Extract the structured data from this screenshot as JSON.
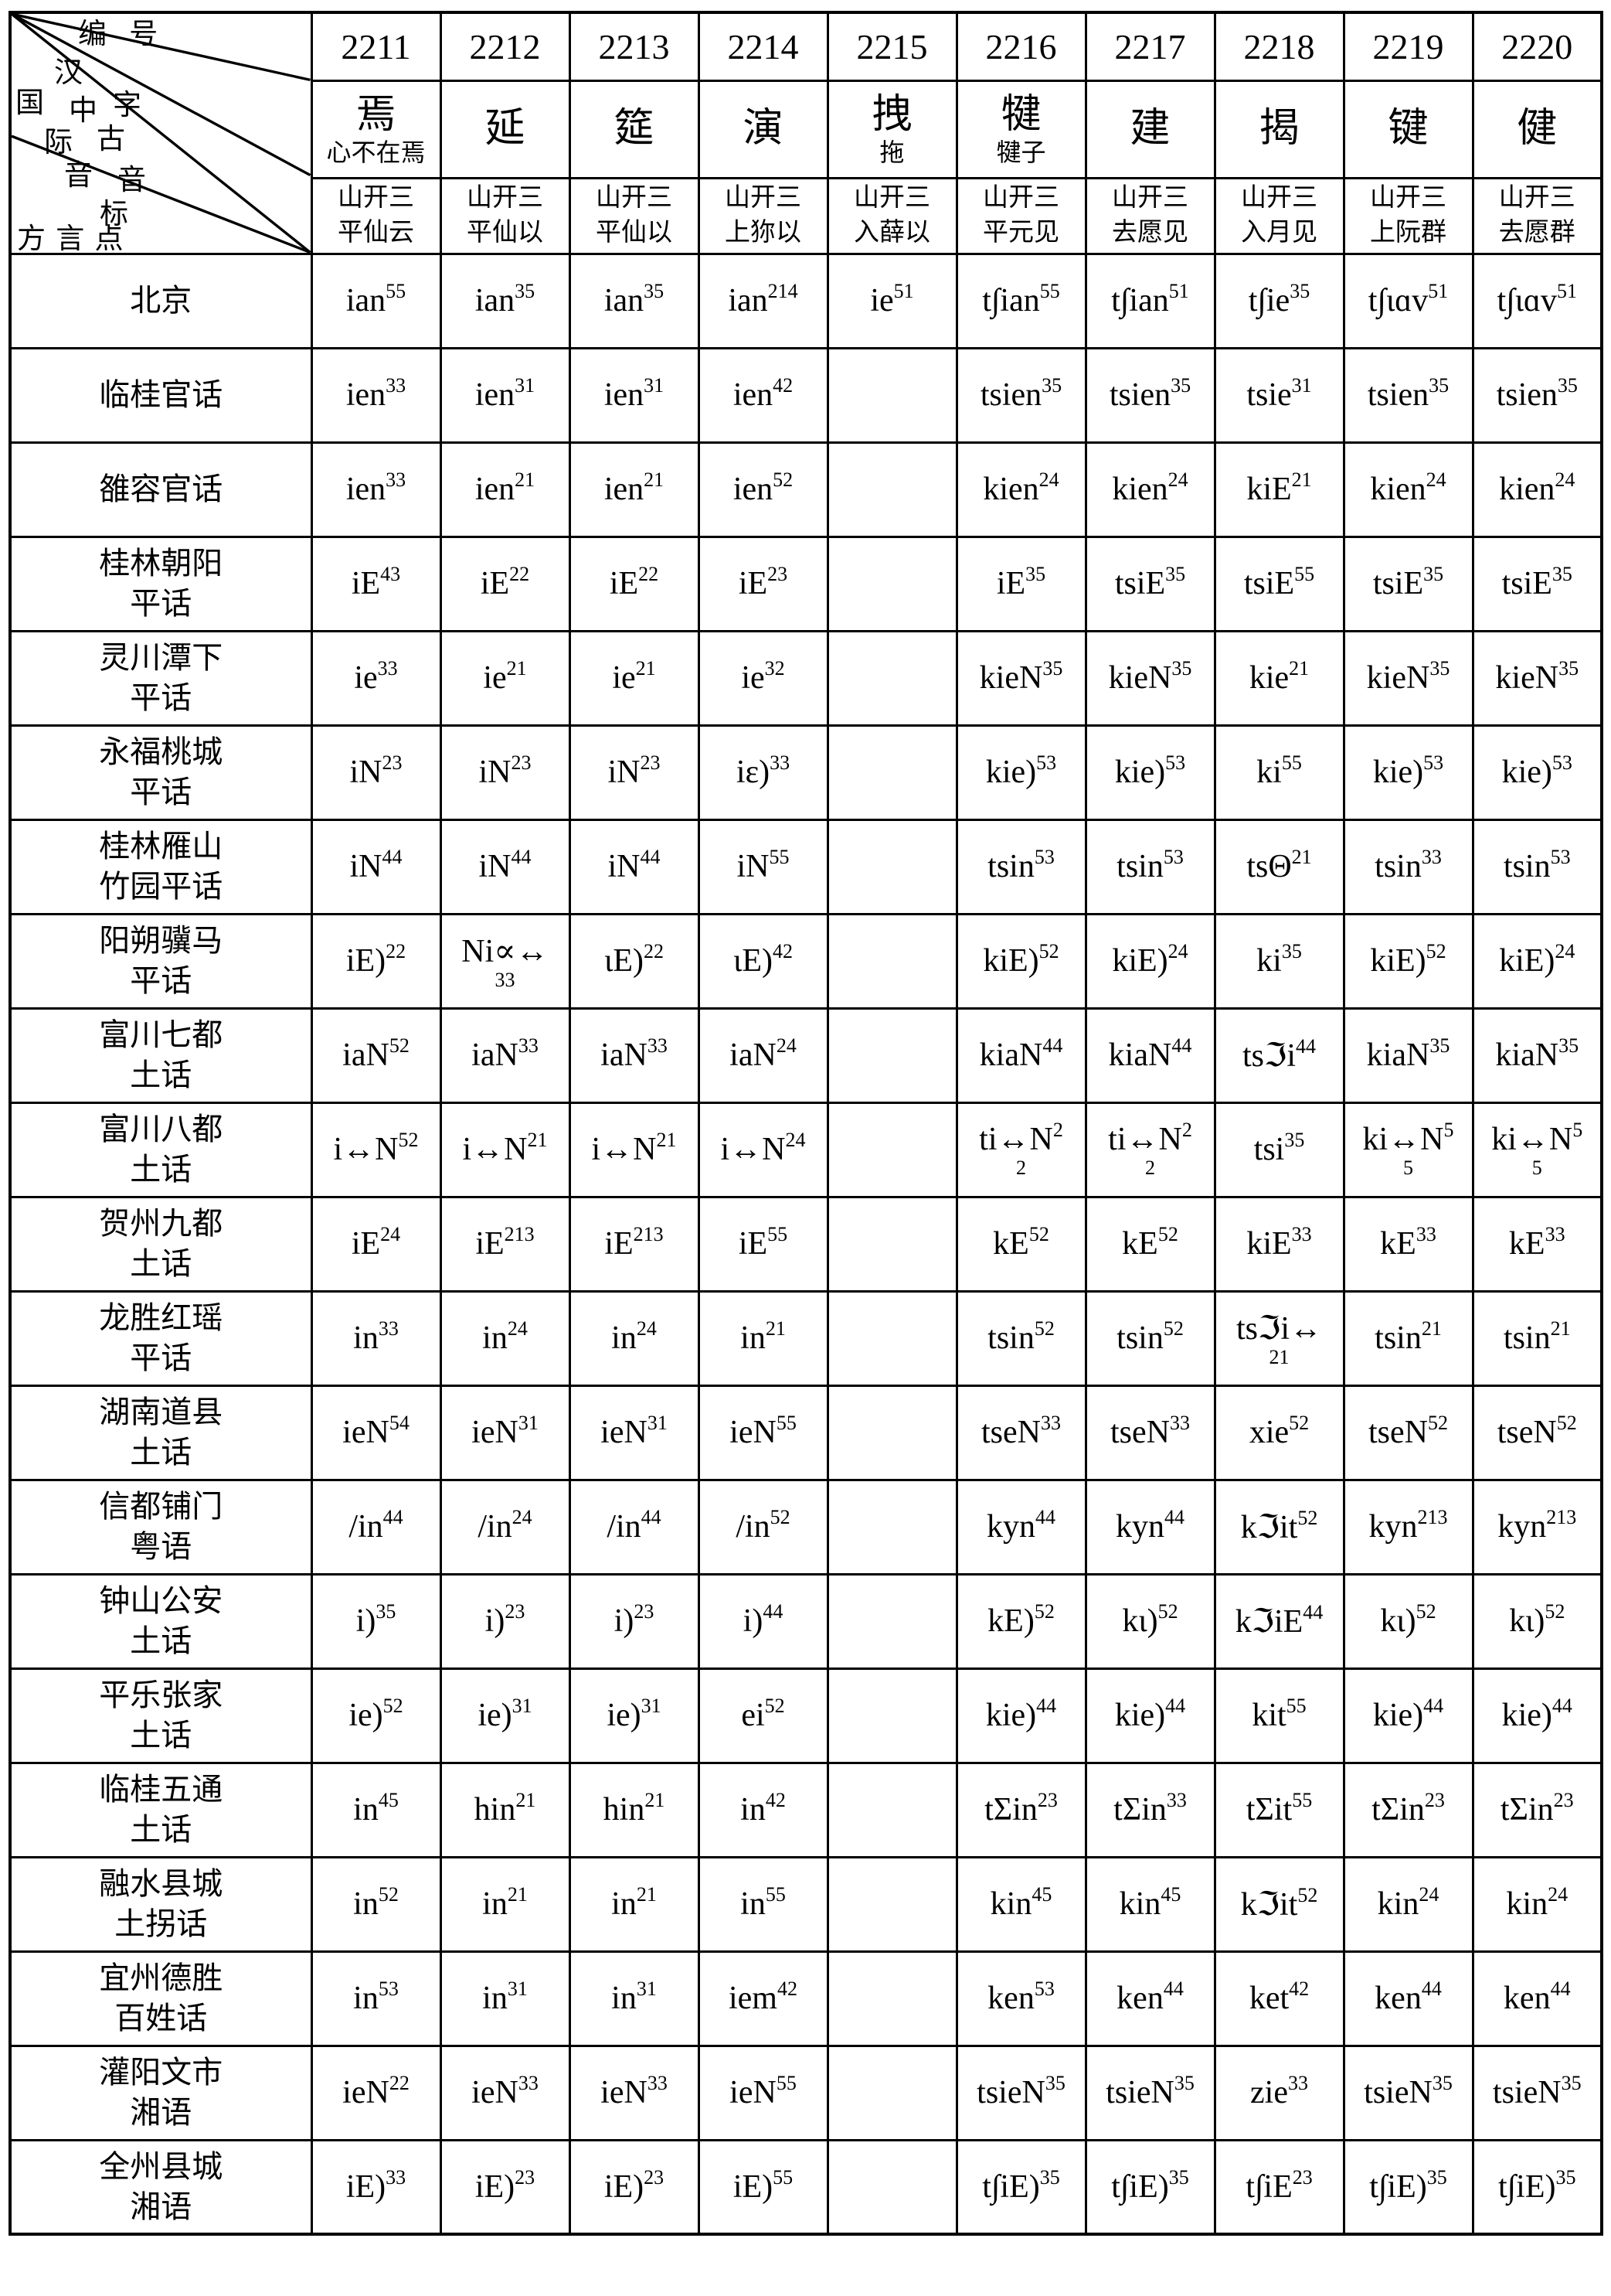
{
  "corner": {
    "bianhao": "编 号",
    "han": "汉",
    "zi": "字",
    "guo": "国",
    "zhong": "中",
    "ji": "际",
    "gu": "古",
    "yin1": "音",
    "yin2": "音",
    "biao": "标",
    "fangyandian": "方 言 点"
  },
  "columns": [
    {
      "id": "2211",
      "char": "焉",
      "note": "心不在焉",
      "mc": [
        "山开三",
        "平仙云"
      ]
    },
    {
      "id": "2212",
      "char": "延",
      "note": "",
      "mc": [
        "山开三",
        "平仙以"
      ]
    },
    {
      "id": "2213",
      "char": "筵",
      "note": "",
      "mc": [
        "山开三",
        "平仙以"
      ]
    },
    {
      "id": "2214",
      "char": "演",
      "note": "",
      "mc": [
        "山开三",
        "上狝以"
      ]
    },
    {
      "id": "2215",
      "char": "拽",
      "note": "拖",
      "mc": [
        "山开三",
        "入薛以"
      ]
    },
    {
      "id": "2216",
      "char": "犍",
      "note": "犍子",
      "mc": [
        "山开三",
        "平元见"
      ]
    },
    {
      "id": "2217",
      "char": "建",
      "note": "",
      "mc": [
        "山开三",
        "去愿见"
      ]
    },
    {
      "id": "2218",
      "char": "揭",
      "note": "",
      "mc": [
        "山开三",
        "入月见"
      ]
    },
    {
      "id": "2219",
      "char": "键",
      "note": "",
      "mc": [
        "山开三",
        "上阮群"
      ]
    },
    {
      "id": "2220",
      "char": "健",
      "note": "",
      "mc": [
        "山开三",
        "去愿群"
      ]
    }
  ],
  "rows": [
    {
      "name": [
        "北京"
      ],
      "cells": [
        [
          "ian",
          "55"
        ],
        [
          "ian",
          "35"
        ],
        [
          "ian",
          "35"
        ],
        [
          "ian",
          "214"
        ],
        [
          "ie",
          "51"
        ],
        [
          "t∫ian",
          "55"
        ],
        [
          "t∫ian",
          "51"
        ],
        [
          "t∫ie",
          "35"
        ],
        [
          "t∫ɩɑv",
          "51"
        ],
        [
          "t∫ɩɑv",
          "51"
        ]
      ]
    },
    {
      "name": [
        "临桂官话"
      ],
      "cells": [
        [
          "ien",
          "33"
        ],
        [
          "ien",
          "31"
        ],
        [
          "ien",
          "31"
        ],
        [
          "ien",
          "42"
        ],
        null,
        [
          "tsien",
          "35"
        ],
        [
          "tsien",
          "35"
        ],
        [
          "tsie",
          "31"
        ],
        [
          "tsien",
          "35"
        ],
        [
          "tsien",
          "35"
        ]
      ]
    },
    {
      "name": [
        "雒容官话"
      ],
      "cells": [
        [
          "ien",
          "33"
        ],
        [
          "ien",
          "21"
        ],
        [
          "ien",
          "21"
        ],
        [
          "ien",
          "52"
        ],
        null,
        [
          "kien",
          "24"
        ],
        [
          "kien",
          "24"
        ],
        [
          "kiE",
          "21"
        ],
        [
          "kien",
          "24"
        ],
        [
          "kien",
          "24"
        ]
      ]
    },
    {
      "name": [
        "桂林朝阳",
        "平话"
      ],
      "cells": [
        [
          "iE",
          "43"
        ],
        [
          "iE",
          "22"
        ],
        [
          "iE",
          "22"
        ],
        [
          "iE",
          "23"
        ],
        null,
        [
          "iE",
          "35"
        ],
        [
          "tsiE",
          "35"
        ],
        [
          "tsiE",
          "55"
        ],
        [
          "tsiE",
          "35"
        ],
        [
          "tsiE",
          "35"
        ]
      ]
    },
    {
      "name": [
        "灵川潭下",
        "平话"
      ],
      "cells": [
        [
          "ie",
          "33"
        ],
        [
          "ie",
          "21"
        ],
        [
          "ie",
          "21"
        ],
        [
          "ie",
          "32"
        ],
        null,
        [
          "kieN",
          "35"
        ],
        [
          "kieN",
          "35"
        ],
        [
          "kie",
          "21"
        ],
        [
          "kieN",
          "35"
        ],
        [
          "kieN",
          "35"
        ]
      ]
    },
    {
      "name": [
        "永福桃城",
        "平话"
      ],
      "cells": [
        [
          "iN",
          "23"
        ],
        [
          "iN",
          "23"
        ],
        [
          "iN",
          "23"
        ],
        [
          "iɛ)",
          "33"
        ],
        null,
        [
          "kie)",
          "53"
        ],
        [
          "kie)",
          "53"
        ],
        [
          "ki",
          "55"
        ],
        [
          "kie)",
          "53"
        ],
        [
          "kie)",
          "53"
        ]
      ]
    },
    {
      "name": [
        "桂林雁山",
        "竹园平话"
      ],
      "cells": [
        [
          "iN",
          "44"
        ],
        [
          "iN",
          "44"
        ],
        [
          "iN",
          "44"
        ],
        [
          "iN",
          "55"
        ],
        null,
        [
          "tsin",
          "53"
        ],
        [
          "tsin",
          "53"
        ],
        [
          "tsΘ",
          "21"
        ],
        [
          "tsin",
          "33"
        ],
        [
          "tsin",
          "53"
        ]
      ]
    },
    {
      "name": [
        "阳朔骥马",
        "平话"
      ],
      "cells": [
        [
          "iE)",
          "22"
        ],
        [
          "Ni∝↔",
          "",
          "33"
        ],
        [
          "ɩE)",
          "22"
        ],
        [
          "ɩE)",
          "42"
        ],
        null,
        [
          "kiE)",
          "52"
        ],
        [
          "kiE)",
          "24"
        ],
        [
          "ki",
          "35"
        ],
        [
          "kiE)",
          "52"
        ],
        [
          "kiE)",
          "24"
        ]
      ]
    },
    {
      "name": [
        "富川七都",
        "土话"
      ],
      "cells": [
        [
          "iaN",
          "52"
        ],
        [
          "iaN",
          "33"
        ],
        [
          "iaN",
          "33"
        ],
        [
          "iaN",
          "24"
        ],
        null,
        [
          "kiaN",
          "44"
        ],
        [
          "kiaN",
          "44"
        ],
        [
          "tsℑi",
          "44"
        ],
        [
          "kiaN",
          "35"
        ],
        [
          "kiaN",
          "35"
        ]
      ]
    },
    {
      "name": [
        "富川八都",
        "土话"
      ],
      "cells": [
        [
          "i↔N",
          "52"
        ],
        [
          "i↔N",
          "21"
        ],
        [
          "i↔N",
          "21"
        ],
        [
          "i↔N",
          "24"
        ],
        null,
        [
          "ti↔N",
          "2",
          "2"
        ],
        [
          "ti↔N",
          "2",
          "2"
        ],
        [
          "tsi",
          "35"
        ],
        [
          "ki↔N",
          "5",
          "5"
        ],
        [
          "ki↔N",
          "5",
          "5"
        ]
      ]
    },
    {
      "name": [
        "贺州九都",
        "土话"
      ],
      "cells": [
        [
          "iE",
          "24"
        ],
        [
          "iE",
          "213"
        ],
        [
          "iE",
          "213"
        ],
        [
          "iE",
          "55"
        ],
        null,
        [
          "kE",
          "52"
        ],
        [
          "kE",
          "52"
        ],
        [
          "kiE",
          "33"
        ],
        [
          "kE",
          "33"
        ],
        [
          "kE",
          "33"
        ]
      ]
    },
    {
      "name": [
        "龙胜红瑶",
        "平话"
      ],
      "cells": [
        [
          "in",
          "33"
        ],
        [
          "in",
          "24"
        ],
        [
          "in",
          "24"
        ],
        [
          "in",
          "21"
        ],
        null,
        [
          "tsin",
          "52"
        ],
        [
          "tsin",
          "52"
        ],
        [
          "tsℑi↔",
          "",
          "21"
        ],
        [
          "tsin",
          "21"
        ],
        [
          "tsin",
          "21"
        ]
      ]
    },
    {
      "name": [
        "湖南道县",
        "土话"
      ],
      "cells": [
        [
          "ieN",
          "54"
        ],
        [
          "ieN",
          "31"
        ],
        [
          "ieN",
          "31"
        ],
        [
          "ieN",
          "55"
        ],
        null,
        [
          "tseN",
          "33"
        ],
        [
          "tseN",
          "33"
        ],
        [
          "xie",
          "52"
        ],
        [
          "tseN",
          "52"
        ],
        [
          "tseN",
          "52"
        ]
      ]
    },
    {
      "name": [
        "信都铺门",
        "粤语"
      ],
      "cells": [
        [
          "/in",
          "44"
        ],
        [
          "/in",
          "24"
        ],
        [
          "/in",
          "44"
        ],
        [
          "/in",
          "52"
        ],
        null,
        [
          "kyn",
          "44"
        ],
        [
          "kyn",
          "44"
        ],
        [
          "kℑit",
          "52"
        ],
        [
          "kyn",
          "213"
        ],
        [
          "kyn",
          "213"
        ]
      ]
    },
    {
      "name": [
        "钟山公安",
        "土话"
      ],
      "cells": [
        [
          "i)",
          "35"
        ],
        [
          "i)",
          "23"
        ],
        [
          "i)",
          "23"
        ],
        [
          "i)",
          "44"
        ],
        null,
        [
          "kE)",
          "52"
        ],
        [
          "kɩ)",
          "52"
        ],
        [
          "kℑiE",
          "44"
        ],
        [
          "kɩ)",
          "52"
        ],
        [
          "kɩ)",
          "52"
        ]
      ]
    },
    {
      "name": [
        "平乐张家",
        "土话"
      ],
      "cells": [
        [
          "ie)",
          "52"
        ],
        [
          "ie)",
          "31"
        ],
        [
          "ie)",
          "31"
        ],
        [
          "ei",
          "52"
        ],
        null,
        [
          "kie)",
          "44"
        ],
        [
          "kie)",
          "44"
        ],
        [
          "kit",
          "55"
        ],
        [
          "kie)",
          "44"
        ],
        [
          "kie)",
          "44"
        ]
      ]
    },
    {
      "name": [
        "临桂五通",
        "土话"
      ],
      "cells": [
        [
          "in",
          "45"
        ],
        [
          "hin",
          "21"
        ],
        [
          "hin",
          "21"
        ],
        [
          "in",
          "42"
        ],
        null,
        [
          "tΣin",
          "23"
        ],
        [
          "tΣin",
          "33"
        ],
        [
          "tΣit",
          "55"
        ],
        [
          "tΣin",
          "23"
        ],
        [
          "tΣin",
          "23"
        ]
      ]
    },
    {
      "name": [
        "融水县城",
        "土拐话"
      ],
      "cells": [
        [
          "in",
          "52"
        ],
        [
          "in",
          "21"
        ],
        [
          "in",
          "21"
        ],
        [
          "in",
          "55"
        ],
        null,
        [
          "kin",
          "45"
        ],
        [
          "kin",
          "45"
        ],
        [
          "kℑit",
          "52"
        ],
        [
          "kin",
          "24"
        ],
        [
          "kin",
          "24"
        ]
      ]
    },
    {
      "name": [
        "宜州德胜",
        "百姓话"
      ],
      "cells": [
        [
          "in",
          "53"
        ],
        [
          "in",
          "31"
        ],
        [
          "in",
          "31"
        ],
        [
          "iem",
          "42"
        ],
        null,
        [
          "ken",
          "53"
        ],
        [
          "ken",
          "44"
        ],
        [
          "ket",
          "42"
        ],
        [
          "ken",
          "44"
        ],
        [
          "ken",
          "44"
        ]
      ]
    },
    {
      "name": [
        "灌阳文市",
        "湘语"
      ],
      "cells": [
        [
          "ieN",
          "22"
        ],
        [
          "ieN",
          "33"
        ],
        [
          "ieN",
          "33"
        ],
        [
          "ieN",
          "55"
        ],
        null,
        [
          "tsieN",
          "35"
        ],
        [
          "tsieN",
          "35"
        ],
        [
          "zie",
          "33"
        ],
        [
          "tsieN",
          "35"
        ],
        [
          "tsieN",
          "35"
        ]
      ]
    },
    {
      "name": [
        "全州县城",
        "湘语"
      ],
      "cells": [
        [
          "iE)",
          "33"
        ],
        [
          "iE)",
          "23"
        ],
        [
          "iE)",
          "23"
        ],
        [
          "iE)",
          "55"
        ],
        null,
        [
          "t∫iE)",
          "35"
        ],
        [
          "t∫iE)",
          "35"
        ],
        [
          "t∫iE",
          "23"
        ],
        [
          "t∫iE)",
          "35"
        ],
        [
          "t∫iE)",
          "35"
        ]
      ]
    }
  ]
}
